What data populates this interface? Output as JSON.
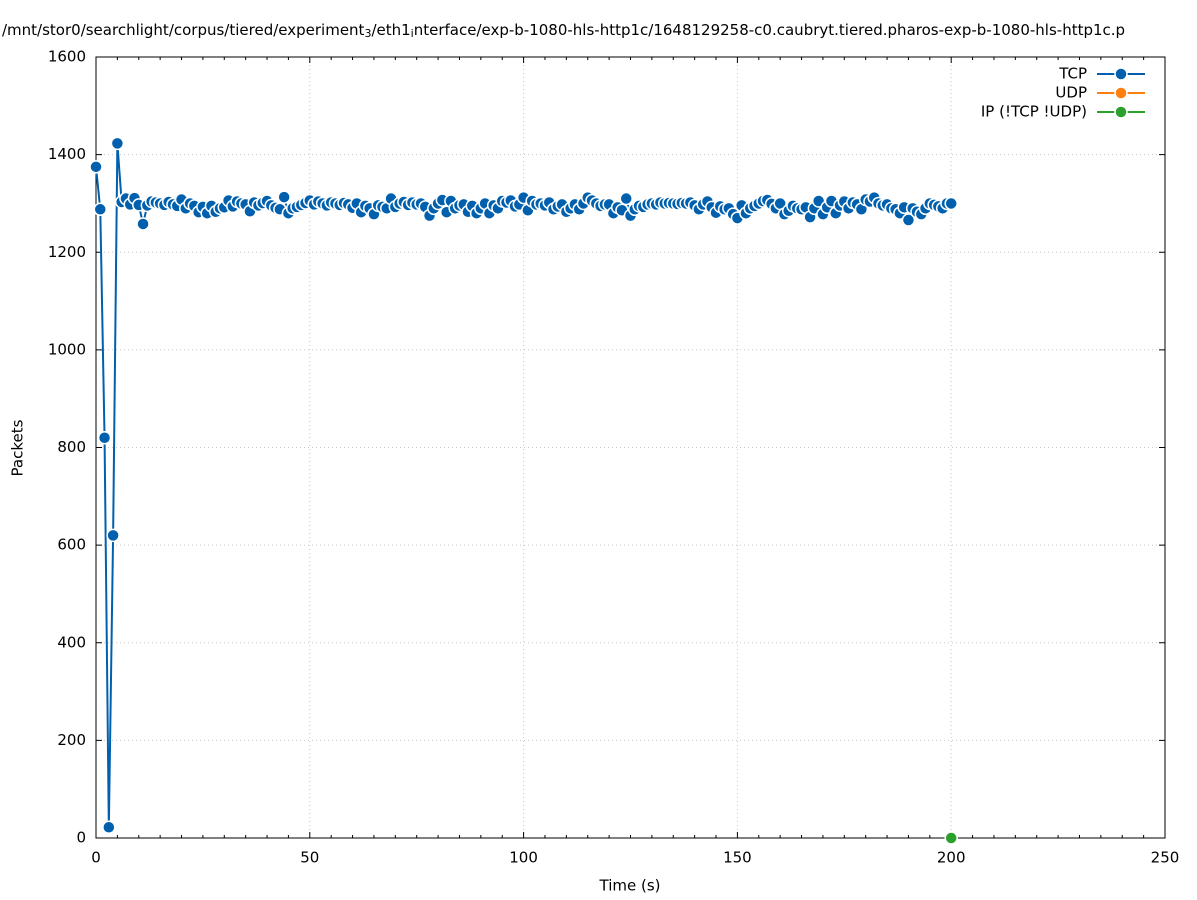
{
  "chart_data": {
    "type": "line",
    "title": [
      {
        "text": "/mnt/stor0/searchlight/corpus/tiered/experiment",
        "sub": false
      },
      {
        "text": "3",
        "sub": true
      },
      {
        "text": "/eth1",
        "sub": false
      },
      {
        "text": "i",
        "sub": true
      },
      {
        "text": "nterface/exp-b-1080-hls-http1c/1648129258-c0.caubryt.tiered.pharos-exp-b-1080-hls-http1c.p",
        "sub": false
      }
    ],
    "xlabel": "Time (s)",
    "ylabel": "Packets",
    "xlim": [
      0,
      250
    ],
    "xticks": [
      0,
      50,
      100,
      150,
      200,
      250
    ],
    "mxtics": 10,
    "ylim": [
      0,
      1600
    ],
    "yticks": [
      0,
      200,
      400,
      600,
      800,
      1000,
      1200,
      1400,
      1600
    ],
    "grid": true,
    "legend": "top-right",
    "series": [
      {
        "name": "TCP",
        "color": "#0060ad",
        "x": [
          0,
          1,
          2,
          3,
          4,
          5,
          6,
          7,
          8,
          9,
          10,
          11,
          12,
          13,
          14,
          15,
          16,
          17,
          18,
          19,
          20,
          21,
          22,
          23,
          24,
          25,
          26,
          27,
          28,
          29,
          30,
          31,
          32,
          33,
          34,
          35,
          36,
          37,
          38,
          39,
          40,
          41,
          42,
          43,
          44,
          45,
          46,
          47,
          48,
          49,
          50,
          51,
          52,
          53,
          54,
          55,
          56,
          57,
          58,
          59,
          60,
          61,
          62,
          63,
          64,
          65,
          66,
          67,
          68,
          69,
          70,
          71,
          72,
          73,
          74,
          75,
          76,
          77,
          78,
          79,
          80,
          81,
          82,
          83,
          84,
          85,
          86,
          87,
          88,
          89,
          90,
          91,
          92,
          93,
          94,
          95,
          96,
          97,
          98,
          99,
          100,
          101,
          102,
          103,
          104,
          105,
          106,
          107,
          108,
          109,
          110,
          111,
          112,
          113,
          114,
          115,
          116,
          117,
          118,
          119,
          120,
          121,
          122,
          123,
          124,
          125,
          126,
          127,
          128,
          129,
          130,
          131,
          132,
          133,
          134,
          135,
          136,
          137,
          138,
          139,
          140,
          141,
          142,
          143,
          144,
          145,
          146,
          147,
          148,
          149,
          150,
          151,
          152,
          153,
          154,
          155,
          156,
          157,
          158,
          159,
          160,
          161,
          162,
          163,
          164,
          165,
          166,
          167,
          168,
          169,
          170,
          171,
          172,
          173,
          174,
          175,
          176,
          177,
          178,
          179,
          180,
          181,
          182,
          183,
          184,
          185,
          186,
          187,
          188,
          189,
          190,
          191,
          192,
          193,
          194,
          195,
          196,
          197,
          198,
          199,
          200
        ],
        "values": [
          1375,
          1288,
          820,
          22,
          620,
          1423,
          1303,
          1310,
          1298,
          1311,
          1297,
          1258,
          1296,
          1304,
          1302,
          1300,
          1297,
          1303,
          1298,
          1295,
          1308,
          1290,
          1300,
          1295,
          1282,
          1293,
          1280,
          1295,
          1283,
          1290,
          1292,
          1306,
          1294,
          1304,
          1300,
          1298,
          1284,
          1302,
          1296,
          1301,
          1305,
          1296,
          1291,
          1288,
          1313,
          1280,
          1290,
          1293,
          1297,
          1301,
          1306,
          1298,
          1304,
          1300,
          1296,
          1302,
          1300,
          1297,
          1301,
          1298,
          1291,
          1300,
          1282,
          1295,
          1290,
          1278,
          1296,
          1293,
          1290,
          1310,
          1293,
          1300,
          1303,
          1297,
          1302,
          1298,
          1300,
          1293,
          1275,
          1290,
          1300,
          1307,
          1282,
          1305,
          1290,
          1296,
          1298,
          1283,
          1295,
          1280,
          1290,
          1300,
          1280,
          1296,
          1290,
          1305,
          1302,
          1306,
          1294,
          1298,
          1312,
          1286,
          1305,
          1298,
          1300,
          1296,
          1302,
          1288,
          1294,
          1298,
          1283,
          1290,
          1298,
          1288,
          1300,
          1312,
          1306,
          1300,
          1295,
          1298,
          1298,
          1280,
          1292,
          1286,
          1310,
          1275,
          1288,
          1295,
          1293,
          1298,
          1300,
          1298,
          1302,
          1300,
          1301,
          1300,
          1299,
          1301,
          1300,
          1302,
          1296,
          1288,
          1298,
          1304,
          1292,
          1281,
          1294,
          1288,
          1290,
          1278,
          1270,
          1296,
          1280,
          1290,
          1295,
          1300,
          1305,
          1307,
          1299,
          1290,
          1300,
          1278,
          1285,
          1295,
          1290,
          1288,
          1292,
          1272,
          1290,
          1305,
          1278,
          1292,
          1305,
          1280,
          1296,
          1304,
          1290,
          1302,
          1298,
          1288,
          1308,
          1304,
          1312,
          1300,
          1296,
          1298,
          1290,
          1288,
          1280,
          1292,
          1266,
          1290,
          1283,
          1278,
          1290,
          1300,
          1297,
          1294,
          1290,
          1300,
          1300
        ]
      },
      {
        "name": "UDP",
        "color": "#ff7f0e",
        "x": [],
        "values": []
      },
      {
        "name": "IP (!TCP  !UDP)",
        "color": "#2ca02c",
        "x": [
          200
        ],
        "values": [
          0
        ]
      }
    ]
  }
}
